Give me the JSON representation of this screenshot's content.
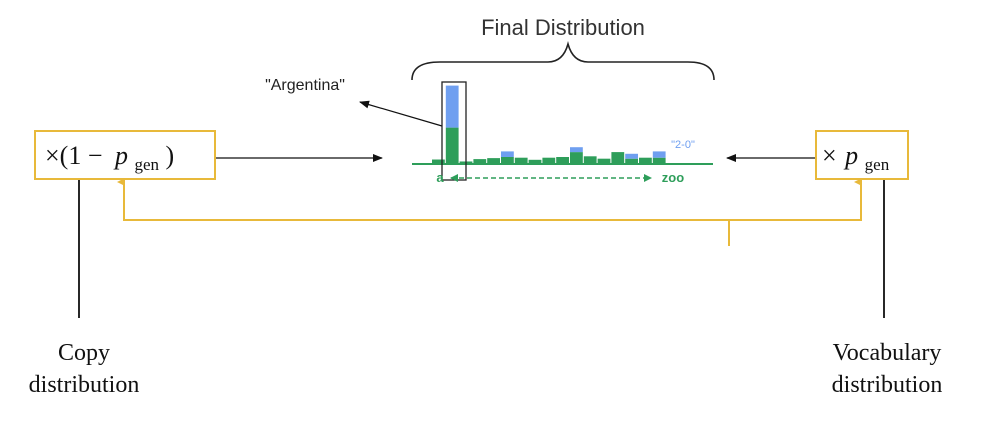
{
  "title": "Final Distribution",
  "annotation_argentina": "\"Argentina\"",
  "annotation_score": "\"2-0\"",
  "axis_start": "a",
  "axis_end": "zoo",
  "left_box": {
    "times": "×(1 −",
    "p": "p",
    "sub": "gen",
    "close": ")"
  },
  "right_box": {
    "times": "×",
    "p": "p",
    "sub": "gen"
  },
  "left_caption": {
    "line1": "Copy",
    "line2": "distribution"
  },
  "right_caption": {
    "line1": "Vocabulary",
    "line2": "distribution"
  },
  "colors": {
    "green": "#2e9e5a",
    "blue": "#6f9ff0",
    "gold": "#e8b93a",
    "ink": "#111111"
  },
  "chart_data": {
    "type": "bar",
    "stacked": true,
    "series": [
      {
        "values": [
          0.32,
          2.6,
          0.18,
          0.35,
          0.42,
          0.5,
          0.45,
          0.3,
          0.45,
          0.5,
          0.85,
          0.55,
          0.38,
          0.85,
          0.38,
          0.45,
          0.45
        ]
      },
      {
        "values": [
          0,
          3.0,
          0,
          0,
          0,
          0.4,
          0,
          0,
          0,
          0,
          0.35,
          0,
          0,
          0,
          0.35,
          0,
          0.45
        ]
      }
    ]
  }
}
